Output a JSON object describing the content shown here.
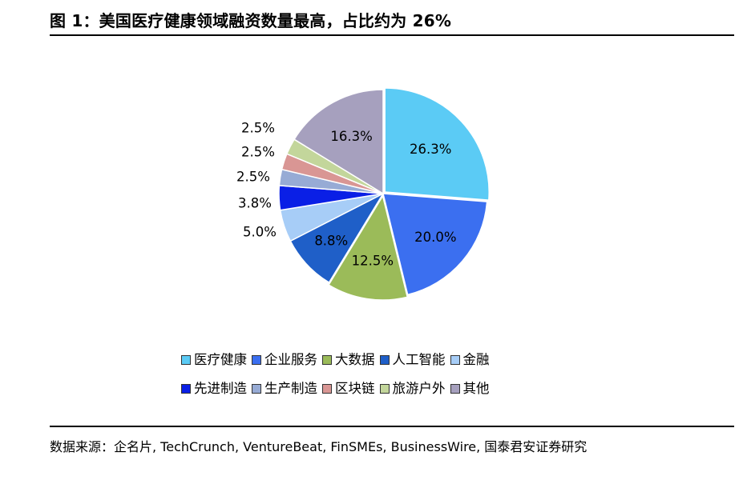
{
  "title": "图 1：美国医疗健康领域融资数量最高，占比约为 26%",
  "source": "数据来源：企名片, TechCrunch, VentureBeat, FinSMEs, BusinessWire, 国泰君安证券研究",
  "chart_data": {
    "type": "pie",
    "labels": [
      "医疗健康",
      "企业服务",
      "大数据",
      "人工智能",
      "金融",
      "先进制造",
      "生产制造",
      "区块链",
      "旅游户外",
      "其他"
    ],
    "values": [
      26.3,
      20.0,
      12.5,
      8.8,
      5.0,
      3.8,
      2.5,
      2.5,
      2.5,
      16.3
    ],
    "data_labels": [
      "26.3%",
      "20.0%",
      "12.5%",
      "8.8%",
      "5.0%",
      "3.8%",
      "2.5%",
      "2.5%",
      "2.5%",
      "16.3%"
    ],
    "colors": [
      "#5BCBF5",
      "#3B6FF0",
      "#9BBB59",
      "#1F5FC8",
      "#A7CDF7",
      "#0A1FE6",
      "#97ABD5",
      "#D99694",
      "#C3D69B",
      "#A6A0BE"
    ],
    "legend_position": "bottom",
    "start_angle": "12 o'clock",
    "direction": "clockwise"
  }
}
